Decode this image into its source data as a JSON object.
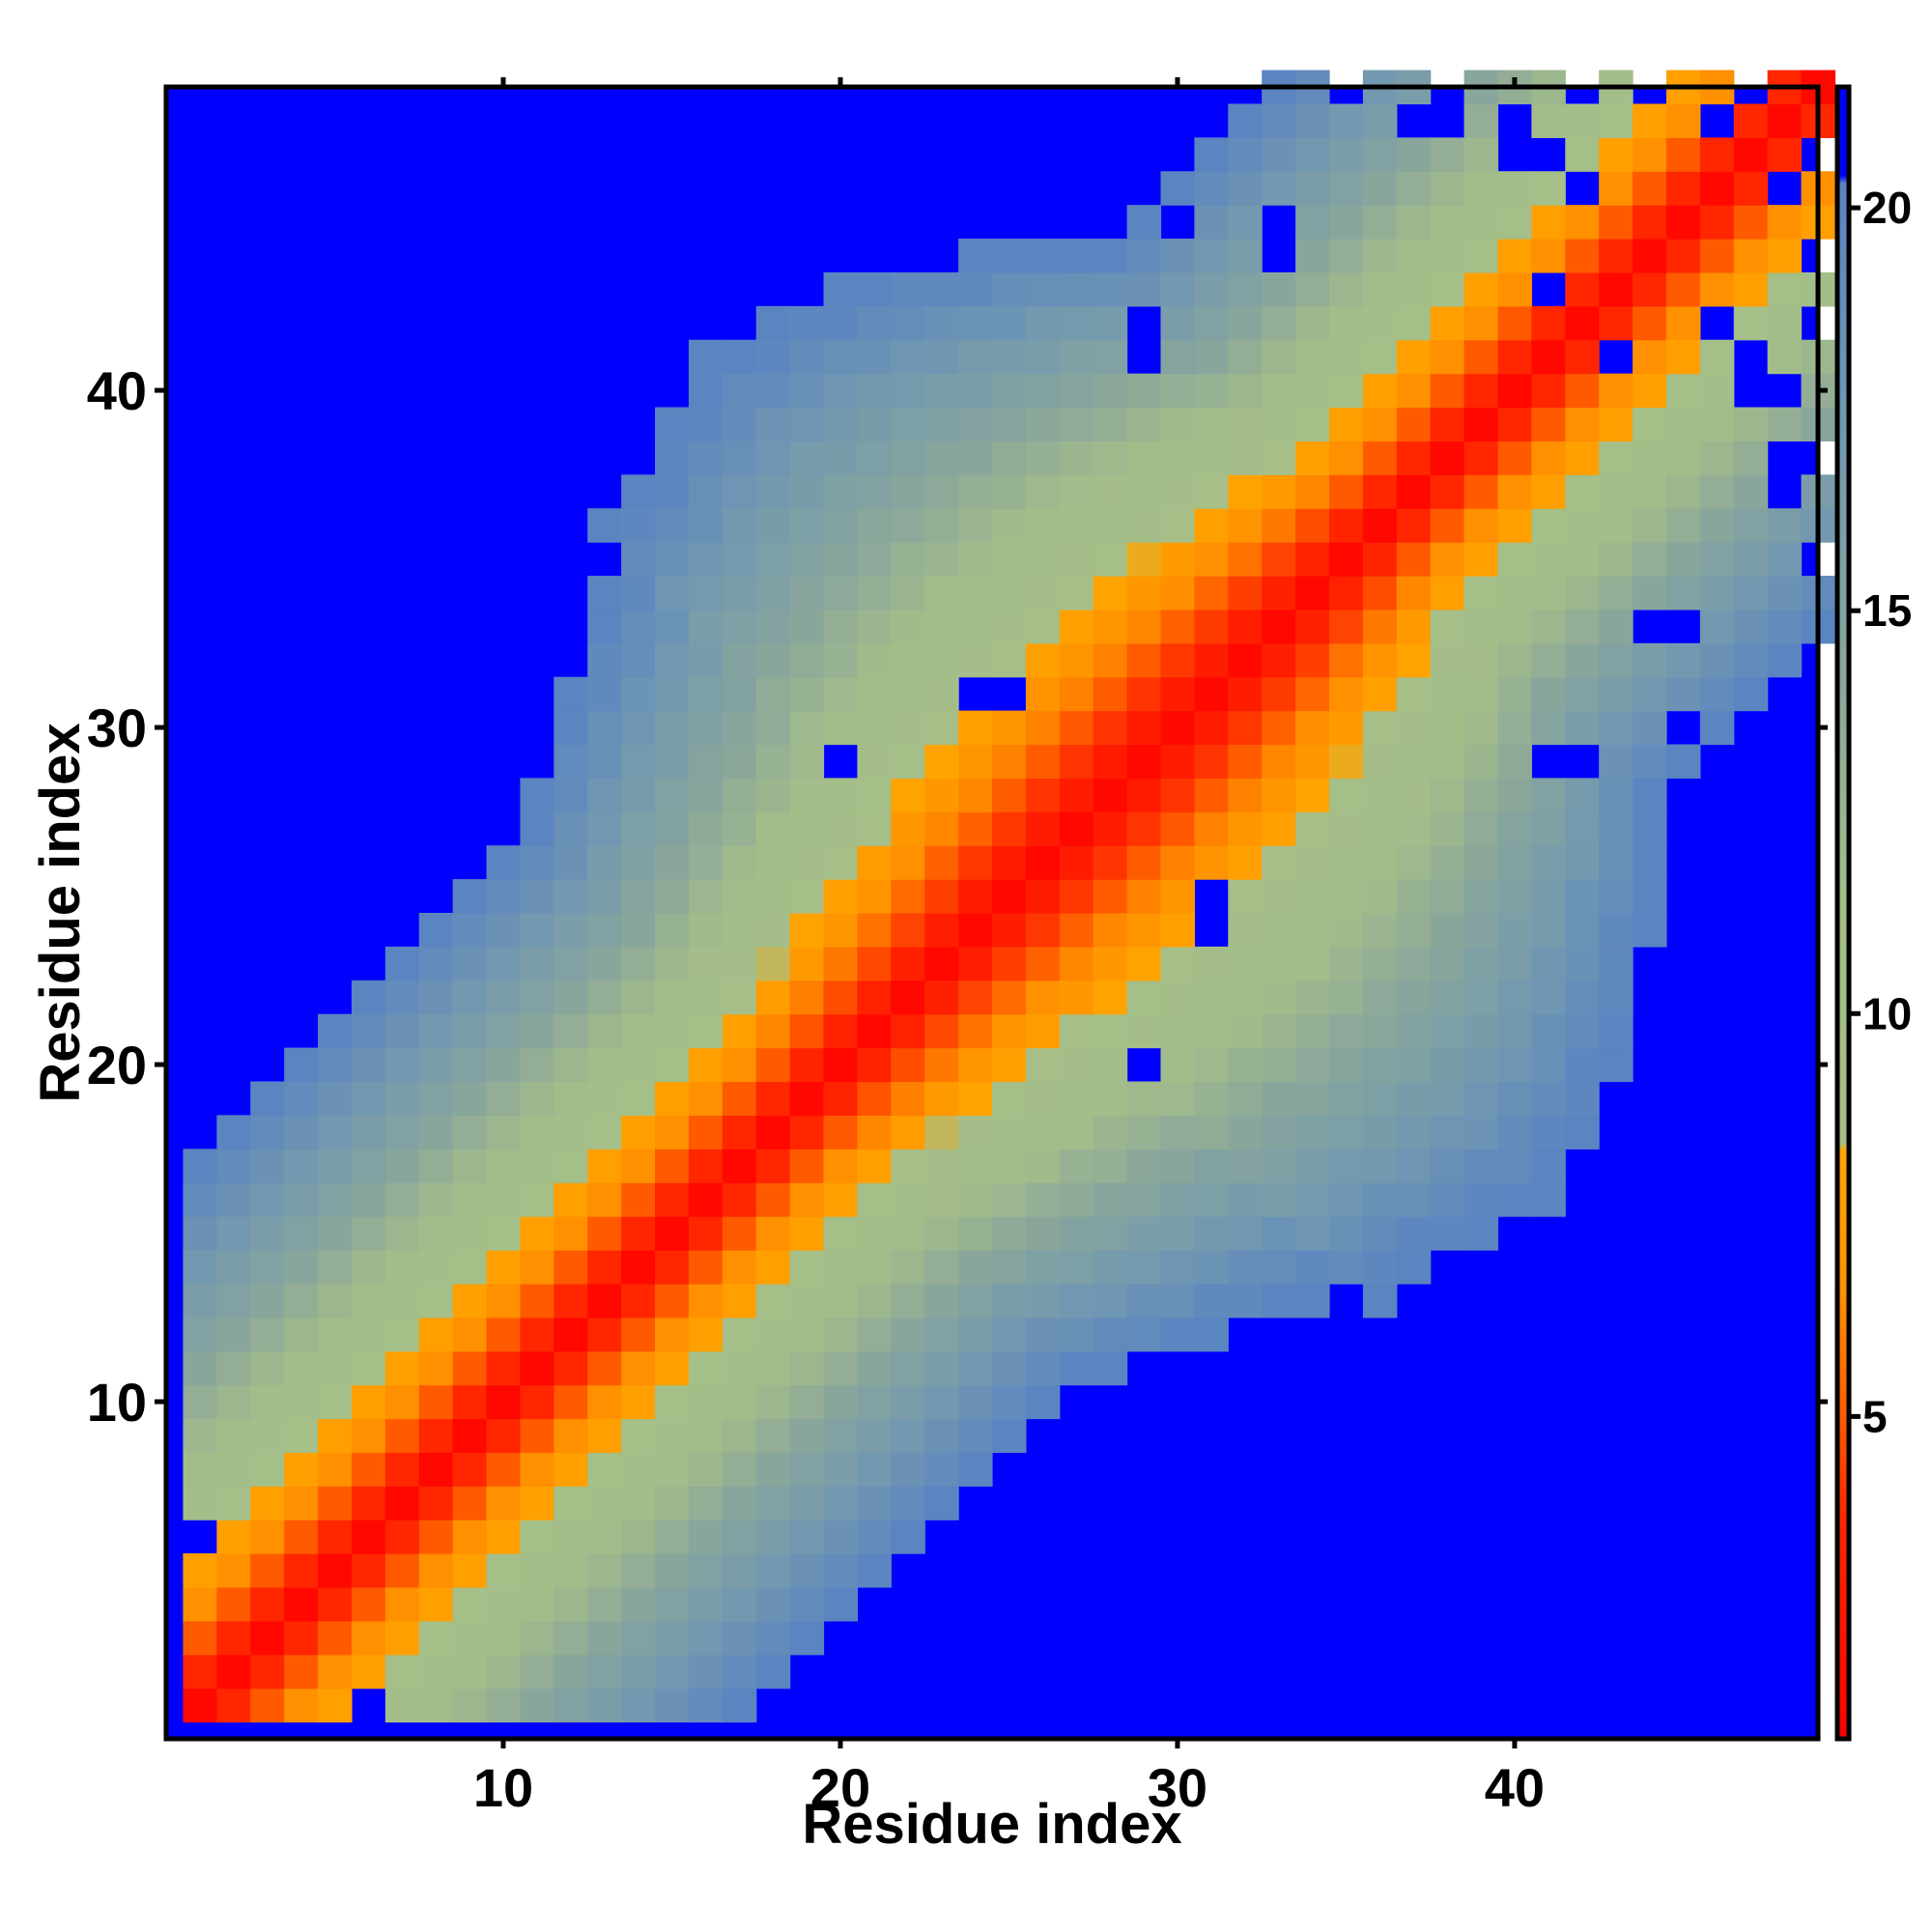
{
  "chart_data": {
    "type": "heatmap",
    "title": "",
    "xlabel": "Residue index",
    "ylabel": "Residue index",
    "n_residues": 49,
    "x_ticks": [
      10,
      20,
      30,
      40
    ],
    "y_ticks": [
      10,
      20,
      30,
      40
    ],
    "xlim": [
      0.5,
      49.5
    ],
    "ylim": [
      0.5,
      49.5
    ],
    "colorbar": {
      "ticks": [
        5,
        10,
        15,
        20
      ],
      "range": [
        1,
        21.5
      ],
      "placement": "right"
    },
    "colors": {
      "background": "#0000ff",
      "near": "#ff0000",
      "orange_red": "#ff5000",
      "orange": "#ff8c00",
      "amber": "#ffa500",
      "sage": "#a3bd8a",
      "grey_green": "#8fa898",
      "steel": "#789cac",
      "slate_blue": "#5f86bf"
    },
    "color_stops": [
      {
        "value": 1.0,
        "color": "#ff0000"
      },
      {
        "value": 3.8,
        "color": "#ff2a00"
      },
      {
        "value": 5.0,
        "color": "#ff5a00"
      },
      {
        "value": 6.5,
        "color": "#ff9000"
      },
      {
        "value": 8.3,
        "color": "#ffa500"
      },
      {
        "value": 8.4,
        "color": "#a6bf88"
      },
      {
        "value": 11.5,
        "color": "#a3bd8a"
      },
      {
        "value": 14.0,
        "color": "#8ba79a"
      },
      {
        "value": 17.0,
        "color": "#749aae"
      },
      {
        "value": 20.3,
        "color": "#5a84c2"
      },
      {
        "value": 20.4,
        "color": "#0000ff"
      },
      {
        "value": 21.5,
        "color": "#0000ff"
      }
    ],
    "value_by_offset": [
      1.5,
      3.5,
      5.0,
      6.5,
      7.8,
      9.0,
      10.2,
      11.2,
      12.2,
      13.2,
      14.3,
      15.3,
      16.2,
      17.2,
      18.2,
      19.2,
      20.2
    ],
    "cutoff_offset": 17,
    "cutoff_value": 21.5,
    "mid_offset_from": 17,
    "mid_offset_to": 36,
    "mid_extra_offsets": [
      0,
      0,
      1,
      2,
      3,
      4,
      5,
      6,
      7,
      7,
      8,
      8,
      9,
      9,
      10,
      10,
      11,
      11,
      12,
      12
    ],
    "blue_holes": [
      [
        6,
        1
      ],
      [
        1,
        6
      ],
      [
        12,
        32
      ],
      [
        24,
        31
      ],
      [
        25,
        31
      ],
      [
        20,
        29
      ],
      [
        24,
        31
      ],
      [
        30,
        45
      ],
      [
        35,
        49
      ],
      [
        38,
        48
      ],
      [
        40,
        48
      ],
      [
        41,
        47
      ],
      [
        47,
        49
      ],
      [
        48,
        46
      ],
      [
        49,
        44
      ],
      [
        41,
        43
      ],
      [
        46,
        42
      ],
      [
        49,
        42
      ],
      [
        47,
        40
      ],
      [
        48,
        40
      ],
      [
        49,
        38
      ],
      [
        48,
        37
      ],
      [
        45,
        33
      ],
      [
        44,
        33
      ],
      [
        41,
        29
      ],
      [
        42,
        29
      ],
      [
        46,
        28
      ]
    ]
  }
}
